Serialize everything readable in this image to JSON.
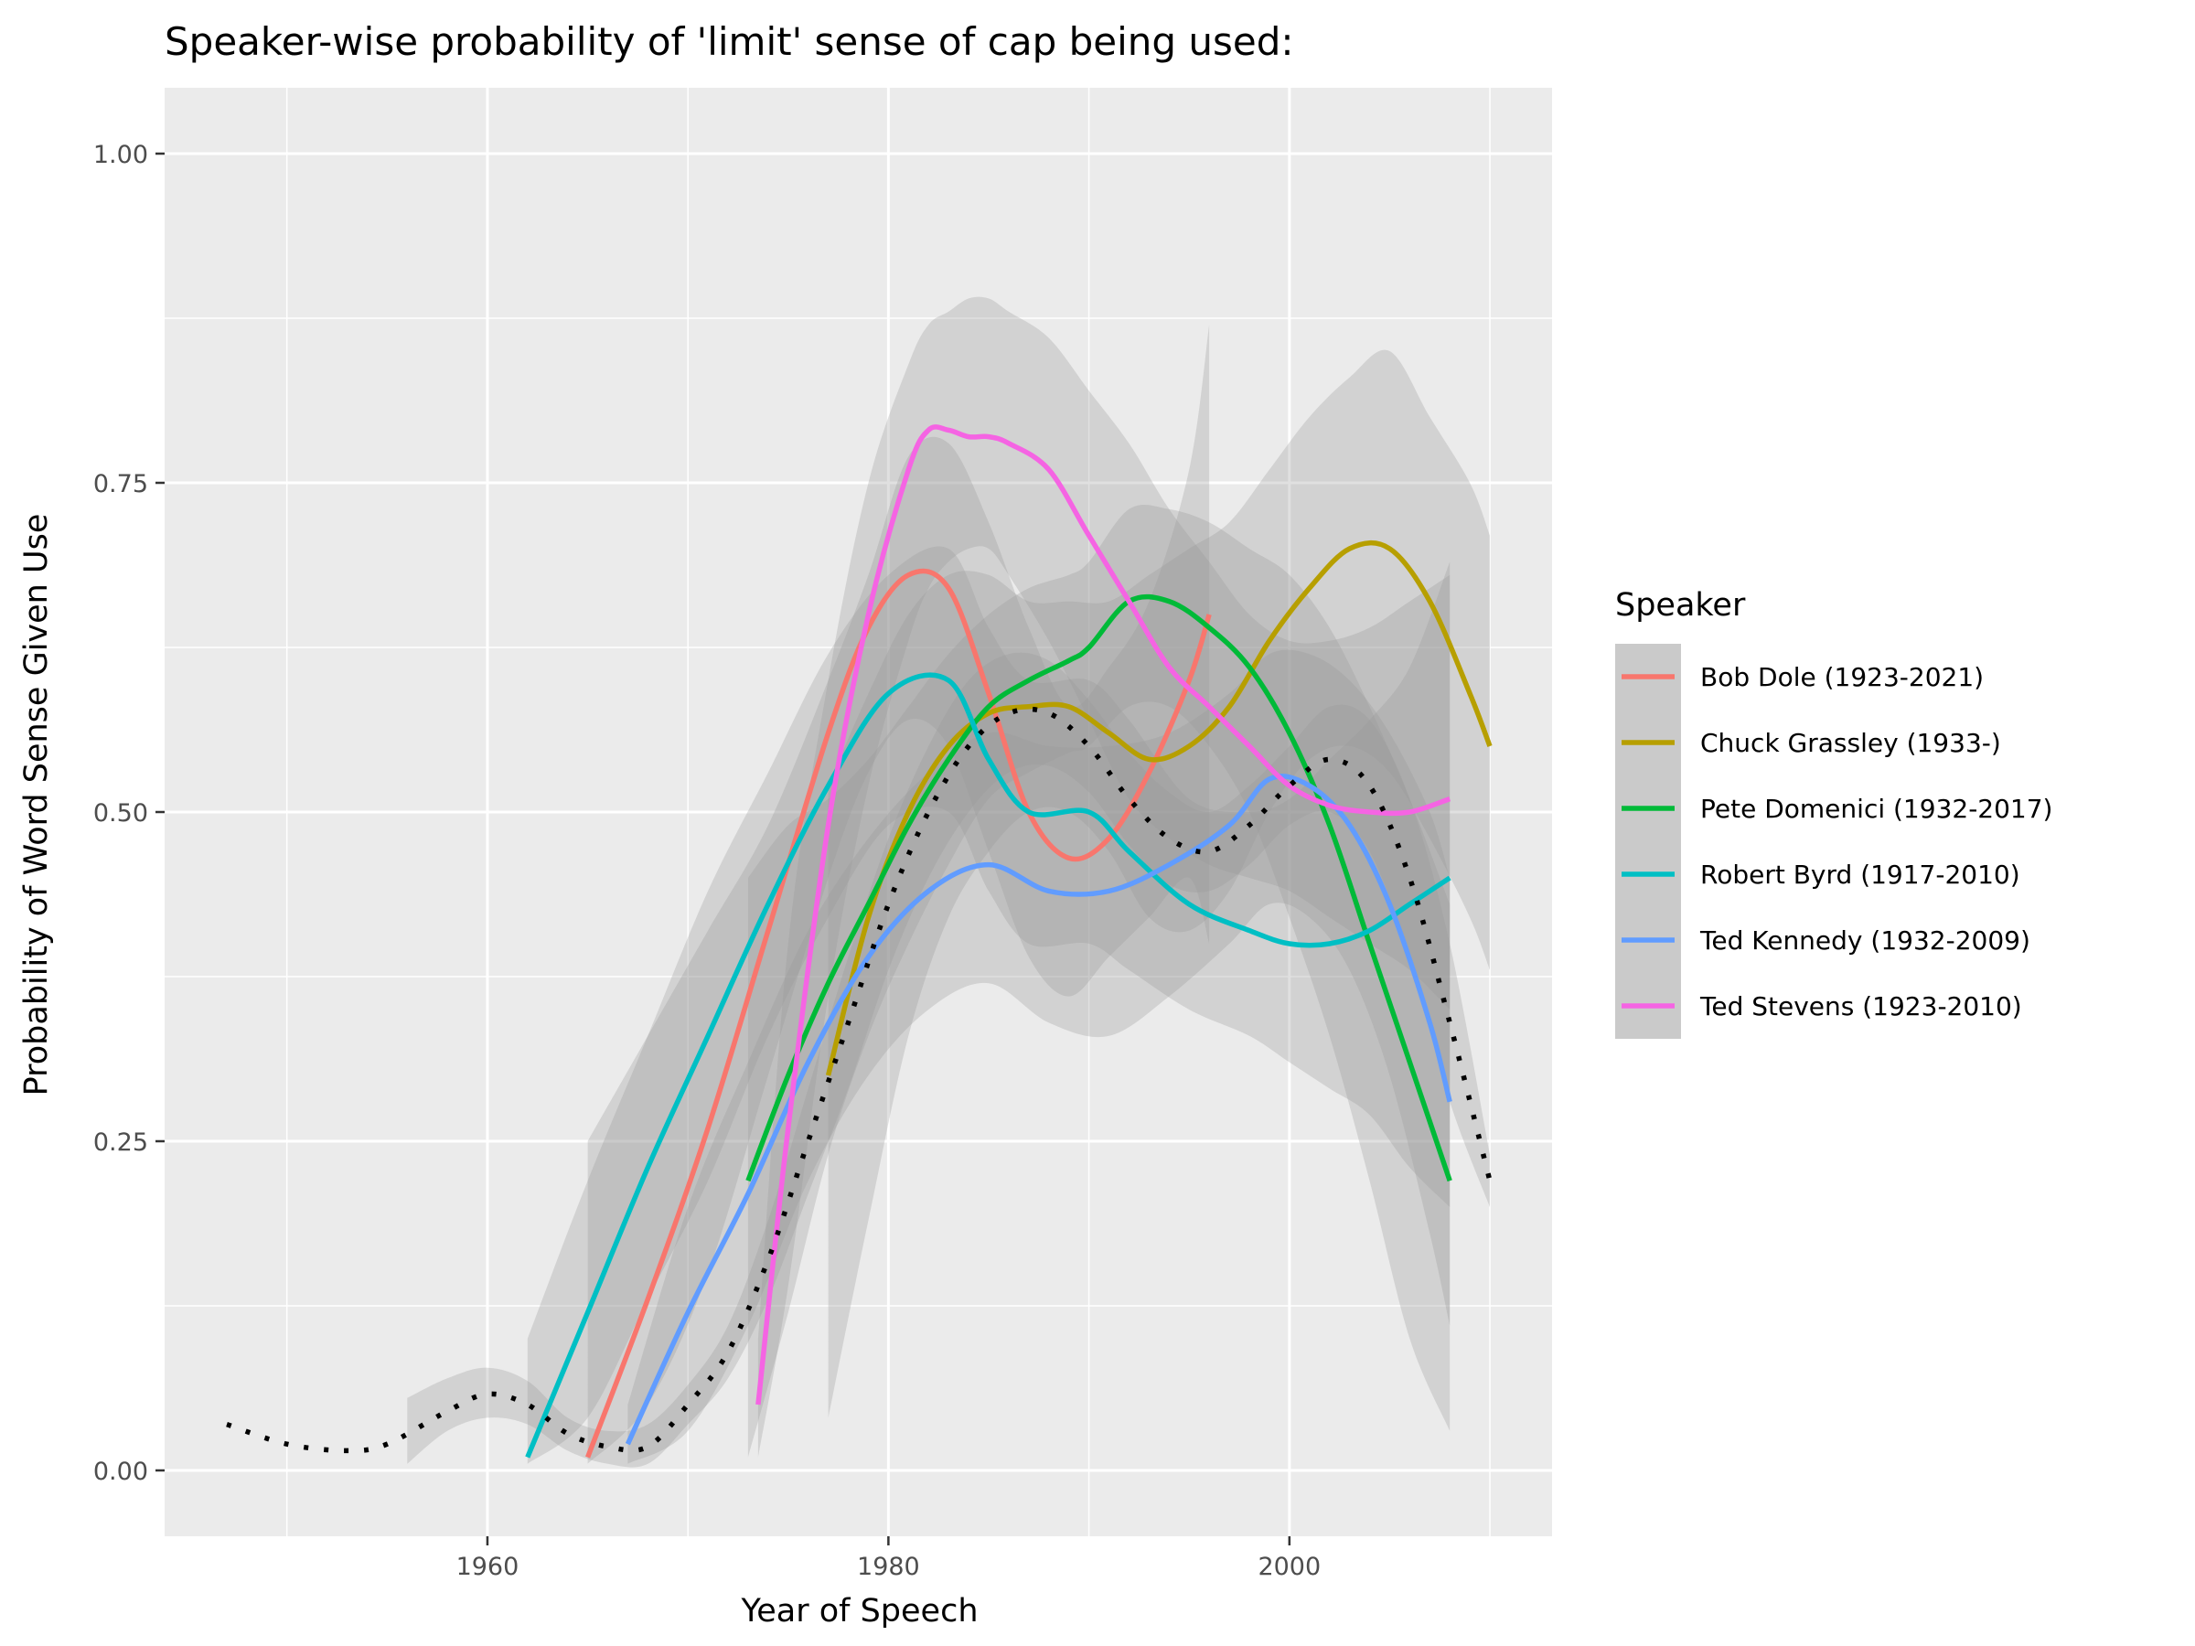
{
  "chart_data": {
    "type": "line",
    "title": "Speaker-wise probability of 'limit' sense of cap being used:",
    "xlabel": "Year of Speech",
    "ylabel": "Probability of Word Sense Given Use",
    "xlim": [
      1943.9,
      2013.1
    ],
    "ylim": [
      -0.05,
      1.05
    ],
    "x_ticks": [
      1960,
      1980,
      2000
    ],
    "x_tick_labels": [
      "1960",
      "1980",
      "2000"
    ],
    "y_ticks": [
      0.0,
      0.25,
      0.5,
      0.75,
      1.0
    ],
    "y_tick_labels": [
      "0.00",
      "0.25",
      "0.50",
      "0.75",
      "1.00"
    ],
    "grid": true,
    "legend": {
      "title": "Speaker",
      "position": "right"
    },
    "colors": {
      "panel": "#ebebeb",
      "grid": "#ffffff",
      "ribbon": "#999999",
      "overall": "#000000"
    },
    "overall": {
      "style": "dotted",
      "x": [
        1947,
        1950,
        1953,
        1955,
        1958,
        1960,
        1962,
        1964,
        1966,
        1968,
        1970,
        1972,
        1974,
        1976,
        1978,
        1980,
        1982,
        1984,
        1986,
        1988,
        1990,
        1992,
        1994,
        1996,
        1998,
        2000,
        2002,
        2004,
        2006,
        2008,
        2010
      ],
      "y": [
        0.035,
        0.02,
        0.015,
        0.02,
        0.045,
        0.058,
        0.05,
        0.028,
        0.018,
        0.018,
        0.05,
        0.09,
        0.16,
        0.25,
        0.34,
        0.43,
        0.5,
        0.55,
        0.575,
        0.575,
        0.55,
        0.51,
        0.48,
        0.47,
        0.49,
        0.52,
        0.54,
        0.52,
        0.45,
        0.34,
        0.22
      ],
      "band": {
        "x": [
          1956,
          1958,
          1960,
          1962,
          1964,
          1966,
          1968,
          1970,
          1972,
          1974,
          1976,
          1978,
          1980,
          1982,
          1984,
          1986,
          1988,
          1990,
          1992,
          1994,
          1996,
          1998,
          2000,
          2002,
          2004,
          2006,
          2008,
          2010
        ],
        "lower": [
          0.005,
          0.03,
          0.04,
          0.035,
          0.015,
          0.005,
          0.005,
          0.035,
          0.07,
          0.13,
          0.21,
          0.29,
          0.38,
          0.45,
          0.5,
          0.53,
          0.535,
          0.515,
          0.475,
          0.445,
          0.44,
          0.46,
          0.49,
          0.5,
          0.47,
          0.39,
          0.28,
          0.2
        ],
        "upper": [
          0.055,
          0.07,
          0.078,
          0.068,
          0.04,
          0.03,
          0.035,
          0.065,
          0.11,
          0.19,
          0.29,
          0.39,
          0.48,
          0.55,
          0.6,
          0.62,
          0.615,
          0.585,
          0.545,
          0.515,
          0.5,
          0.52,
          0.55,
          0.58,
          0.57,
          0.51,
          0.4,
          0.24
        ]
      }
    },
    "series": [
      {
        "name": "Bob Dole (1923-2021)",
        "color": "#f8766d",
        "x": [
          1965,
          1968,
          1971,
          1974,
          1977,
          1979,
          1981,
          1983,
          1985,
          1987,
          1989,
          1991,
          1993,
          1995,
          1996
        ],
        "y": [
          0.01,
          0.13,
          0.26,
          0.41,
          0.56,
          0.64,
          0.68,
          0.67,
          0.59,
          0.5,
          0.465,
          0.48,
          0.53,
          0.6,
          0.65
        ],
        "lower": [
          0.005,
          0.05,
          0.15,
          0.3,
          0.45,
          0.53,
          0.57,
          0.55,
          0.47,
          0.39,
          0.36,
          0.39,
          0.42,
          0.45,
          0.4
        ],
        "upper": [
          0.25,
          0.33,
          0.41,
          0.49,
          0.6,
          0.68,
          0.77,
          0.78,
          0.72,
          0.64,
          0.58,
          0.61,
          0.66,
          0.76,
          0.87
        ]
      },
      {
        "name": "Chuck Grassley (1933-)",
        "color": "#b79f00",
        "x": [
          1977,
          1979,
          1981,
          1983,
          1985,
          1987,
          1989,
          1991,
          1993,
          1995,
          1997,
          1999,
          2001,
          2003,
          2005,
          2007,
          2009,
          2010
        ],
        "y": [
          0.3,
          0.42,
          0.5,
          0.55,
          0.575,
          0.58,
          0.58,
          0.56,
          0.54,
          0.55,
          0.58,
          0.63,
          0.67,
          0.7,
          0.7,
          0.66,
          0.59,
          0.55
        ],
        "lower": [
          0.04,
          0.19,
          0.33,
          0.42,
          0.47,
          0.5,
          0.5,
          0.47,
          0.42,
          0.41,
          0.44,
          0.5,
          0.54,
          0.55,
          0.53,
          0.48,
          0.42,
          0.38
        ],
        "upper": [
          0.52,
          0.59,
          0.65,
          0.68,
          0.68,
          0.66,
          0.66,
          0.66,
          0.68,
          0.7,
          0.72,
          0.76,
          0.8,
          0.83,
          0.85,
          0.8,
          0.75,
          0.71
        ]
      },
      {
        "name": "Pete Domenici (1932-2017)",
        "color": "#00ba38",
        "x": [
          1973,
          1975,
          1977,
          1979,
          1981,
          1983,
          1985,
          1987,
          1989,
          1990,
          1992,
          1994,
          1996,
          1998,
          2000,
          2002,
          2004,
          2006,
          2008
        ],
        "y": [
          0.22,
          0.3,
          0.37,
          0.43,
          0.49,
          0.54,
          0.58,
          0.6,
          0.615,
          0.625,
          0.66,
          0.66,
          0.64,
          0.61,
          0.56,
          0.49,
          0.4,
          0.31,
          0.22
        ],
        "lower": [
          0.01,
          0.12,
          0.24,
          0.33,
          0.4,
          0.46,
          0.51,
          0.53,
          0.545,
          0.55,
          0.58,
          0.58,
          0.55,
          0.5,
          0.42,
          0.33,
          0.22,
          0.1,
          0.03
        ],
        "upper": [
          0.45,
          0.49,
          0.51,
          0.54,
          0.58,
          0.62,
          0.65,
          0.67,
          0.68,
          0.69,
          0.73,
          0.73,
          0.72,
          0.7,
          0.68,
          0.64,
          0.58,
          0.51,
          0.43
        ]
      },
      {
        "name": "Robert Byrd (1917-2010)",
        "color": "#00bfc4",
        "x": [
          1962,
          1965,
          1968,
          1971,
          1974,
          1977,
          1980,
          1983,
          1985,
          1987,
          1990,
          1992,
          1995,
          1998,
          2000,
          2002,
          2004,
          2006,
          2008
        ],
        "y": [
          0.01,
          0.12,
          0.23,
          0.33,
          0.43,
          0.52,
          0.59,
          0.6,
          0.54,
          0.5,
          0.5,
          0.47,
          0.43,
          0.41,
          0.4,
          0.4,
          0.41,
          0.43,
          0.45
        ],
        "lower": [
          0.005,
          0.04,
          0.13,
          0.22,
          0.33,
          0.42,
          0.49,
          0.5,
          0.44,
          0.4,
          0.4,
          0.38,
          0.35,
          0.33,
          0.31,
          0.29,
          0.27,
          0.23,
          0.2
        ],
        "upper": [
          0.1,
          0.22,
          0.33,
          0.44,
          0.53,
          0.62,
          0.68,
          0.7,
          0.64,
          0.6,
          0.6,
          0.57,
          0.51,
          0.5,
          0.51,
          0.54,
          0.57,
          0.61,
          0.69
        ]
      },
      {
        "name": "Ted Kennedy (1932-2009)",
        "color": "#619cff",
        "x": [
          1967,
          1970,
          1973,
          1976,
          1979,
          1982,
          1985,
          1988,
          1991,
          1994,
          1997,
          1999,
          2001,
          2003,
          2005,
          2007,
          2008
        ],
        "y": [
          0.02,
          0.12,
          0.21,
          0.31,
          0.39,
          0.44,
          0.46,
          0.44,
          0.44,
          0.46,
          0.49,
          0.525,
          0.52,
          0.49,
          0.43,
          0.34,
          0.28
        ],
        "lower": [
          0.005,
          0.03,
          0.11,
          0.22,
          0.3,
          0.35,
          0.37,
          0.34,
          0.33,
          0.36,
          0.4,
          0.43,
          0.42,
          0.38,
          0.3,
          0.18,
          0.11
        ],
        "upper": [
          0.05,
          0.2,
          0.31,
          0.41,
          0.48,
          0.53,
          0.56,
          0.55,
          0.55,
          0.56,
          0.59,
          0.62,
          0.62,
          0.6,
          0.56,
          0.5,
          0.45
        ]
      },
      {
        "name": "Ted Stevens (1923-2010)",
        "color": "#f564e3",
        "x": [
          1973.5,
          1975,
          1977,
          1979,
          1981,
          1982,
          1983,
          1984,
          1985,
          1986,
          1988,
          1990,
          1992,
          1994,
          1996,
          1998,
          2000,
          2002,
          2004,
          2006,
          2008
        ],
        "y": [
          0.05,
          0.26,
          0.49,
          0.65,
          0.76,
          0.79,
          0.79,
          0.785,
          0.785,
          0.78,
          0.76,
          0.71,
          0.66,
          0.61,
          0.58,
          0.55,
          0.52,
          0.505,
          0.5,
          0.5,
          0.51
        ],
        "lower": [
          0.01,
          0.14,
          0.36,
          0.52,
          0.63,
          0.67,
          0.69,
          0.7,
          0.7,
          0.68,
          0.63,
          0.57,
          0.51,
          0.48,
          0.46,
          0.45,
          0.44,
          0.42,
          0.4,
          0.38,
          0.35
        ],
        "upper": [
          0.1,
          0.4,
          0.6,
          0.75,
          0.84,
          0.87,
          0.88,
          0.89,
          0.89,
          0.88,
          0.86,
          0.82,
          0.78,
          0.73,
          0.69,
          0.65,
          0.63,
          0.63,
          0.64,
          0.66,
          0.68
        ]
      }
    ]
  }
}
